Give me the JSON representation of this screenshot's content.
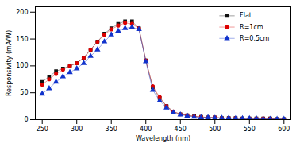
{
  "chart_data": {
    "type": "line",
    "title": "",
    "xlabel": "Wavelength (nm)",
    "ylabel": "Responsivity (mA/W)",
    "x": [
      250,
      260,
      270,
      280,
      290,
      300,
      310,
      320,
      330,
      340,
      350,
      360,
      370,
      380,
      390,
      400,
      410,
      420,
      430,
      440,
      450,
      460,
      470,
      480,
      490,
      500,
      510,
      520,
      530,
      540,
      550,
      560,
      570,
      580,
      590,
      600
    ],
    "series": [
      {
        "name": "Flat",
        "color": "#111111",
        "marker": "square",
        "values": [
          70,
          80,
          90,
          95,
          100,
          105,
          115,
          130,
          145,
          160,
          170,
          178,
          183,
          183,
          170,
          110,
          60,
          40,
          25,
          15,
          10,
          8,
          6,
          5,
          4,
          4,
          3,
          3,
          3,
          2,
          2,
          2,
          2,
          2,
          1,
          1
        ]
      },
      {
        "name": "R=1cm",
        "color": "#dd0000",
        "marker": "circle",
        "values": [
          65,
          75,
          85,
          93,
          100,
          105,
          115,
          130,
          145,
          158,
          168,
          175,
          180,
          178,
          170,
          110,
          62,
          42,
          25,
          15,
          10,
          8,
          6,
          5,
          4,
          4,
          3,
          3,
          3,
          2,
          2,
          2,
          2,
          2,
          1,
          1
        ]
      },
      {
        "name": "R=0.5cm",
        "color": "#1133cc",
        "marker": "triangle",
        "values": [
          48,
          58,
          70,
          80,
          88,
          95,
          105,
          118,
          130,
          145,
          158,
          165,
          170,
          172,
          168,
          108,
          55,
          35,
          22,
          13,
          9,
          7,
          5,
          4,
          4,
          3,
          3,
          3,
          2,
          2,
          2,
          2,
          1,
          1,
          1,
          1
        ]
      }
    ],
    "xlim": [
      240,
      610
    ],
    "ylim": [
      0,
      210
    ],
    "xticks": [
      250,
      300,
      350,
      400,
      450,
      500,
      550,
      600
    ],
    "yticks": [
      0,
      50,
      100,
      150,
      200
    ],
    "grid": false,
    "legend": "upper right"
  }
}
